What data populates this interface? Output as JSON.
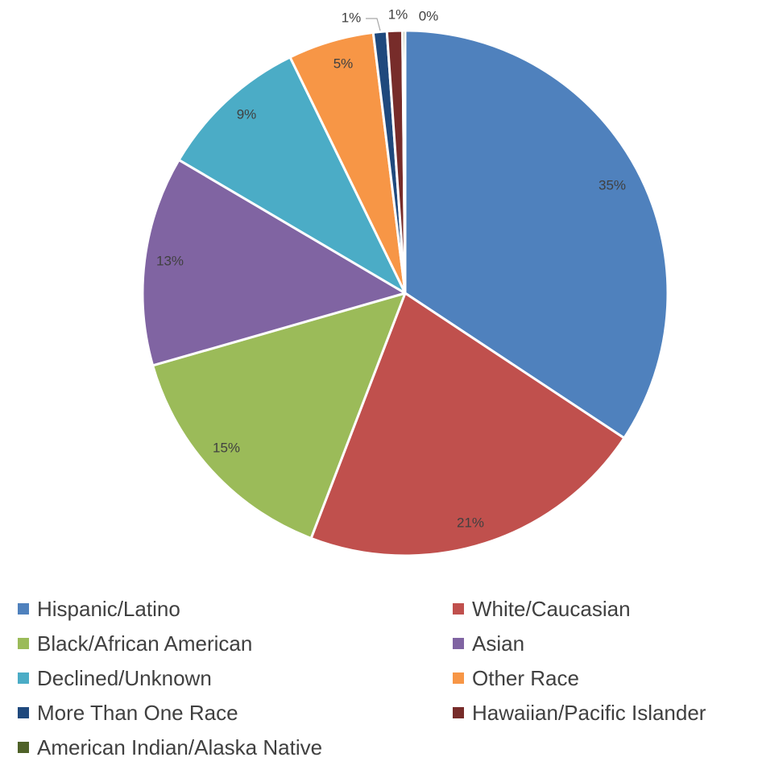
{
  "chart_data": {
    "type": "pie",
    "categories": [
      "Hispanic/Latino",
      "White/Caucasian",
      "Black/African American",
      "Asian",
      "Declined/Unknown",
      "Other Race",
      "More Than One Race",
      "Hawaiian/Pacific Islander",
      "American Indian/Alaska Native"
    ],
    "values": [
      35,
      21,
      15,
      13,
      9,
      5,
      1,
      1,
      0
    ],
    "data_labels": [
      "35%",
      "21%",
      "15%",
      "13%",
      "9%",
      "5%",
      "1%",
      "1%",
      "0%"
    ],
    "colors": [
      "#4f81bd",
      "#c0504d",
      "#9bbb59",
      "#8064a2",
      "#4bacc6",
      "#f79646",
      "#1f497d",
      "#772c2a",
      "#4f6228"
    ],
    "start_angle": "12 o'clock",
    "direction": "clockwise",
    "legend_position": "bottom"
  }
}
